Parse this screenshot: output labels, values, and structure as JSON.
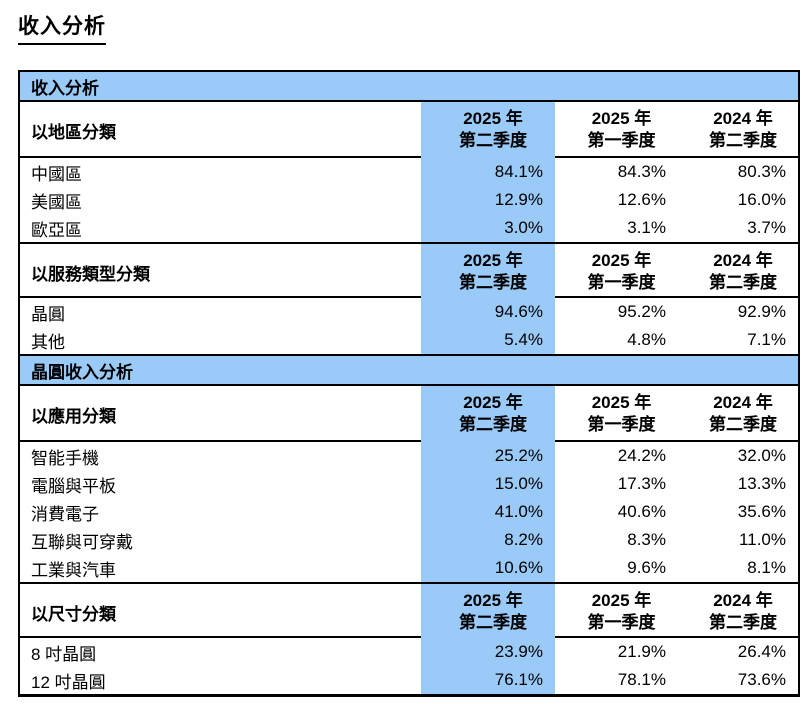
{
  "page_title": "收入分析",
  "colors": {
    "highlight_blue": "#9ACAF8",
    "border": "#000000",
    "background": "#FFFFFF"
  },
  "period_headers": {
    "current": {
      "line1": "2025 年",
      "line2": "第二季度"
    },
    "prior": {
      "line1": "2025 年",
      "line2": "第一季度"
    },
    "year_ago": {
      "line1": "2024 年",
      "line2": "第二季度"
    }
  },
  "bands": {
    "revenue": "收入分析",
    "wafer_revenue": "晶圓收入分析"
  },
  "sections": [
    {
      "title": "以地區分類",
      "rows": [
        {
          "label": "中國區",
          "values": [
            "84.1%",
            "84.3%",
            "80.3%"
          ]
        },
        {
          "label": "美國區",
          "values": [
            "12.9%",
            "12.6%",
            "16.0%"
          ]
        },
        {
          "label": "歐亞區",
          "values": [
            "3.0%",
            "3.1%",
            "3.7%"
          ]
        }
      ]
    },
    {
      "title": "以服務類型分類",
      "rows": [
        {
          "label": "晶圓",
          "values": [
            "94.6%",
            "95.2%",
            "92.9%"
          ]
        },
        {
          "label": "其他",
          "values": [
            "5.4%",
            "4.8%",
            "7.1%"
          ]
        }
      ]
    },
    {
      "title": "以應用分類",
      "rows": [
        {
          "label": "智能手機",
          "values": [
            "25.2%",
            "24.2%",
            "32.0%"
          ]
        },
        {
          "label": "電腦與平板",
          "values": [
            "15.0%",
            "17.3%",
            "13.3%"
          ]
        },
        {
          "label": "消費電子",
          "values": [
            "41.0%",
            "40.6%",
            "35.6%"
          ]
        },
        {
          "label": "互聯與可穿戴",
          "values": [
            "8.2%",
            "8.3%",
            "11.0%"
          ]
        },
        {
          "label": "工業與汽車",
          "values": [
            "10.6%",
            "9.6%",
            "8.1%"
          ]
        }
      ]
    },
    {
      "title": "以尺寸分類",
      "rows": [
        {
          "label": "8 吋晶圓",
          "values": [
            "23.9%",
            "21.9%",
            "26.4%"
          ]
        },
        {
          "label": "12 吋晶圓",
          "values": [
            "76.1%",
            "78.1%",
            "73.6%"
          ]
        }
      ]
    }
  ]
}
